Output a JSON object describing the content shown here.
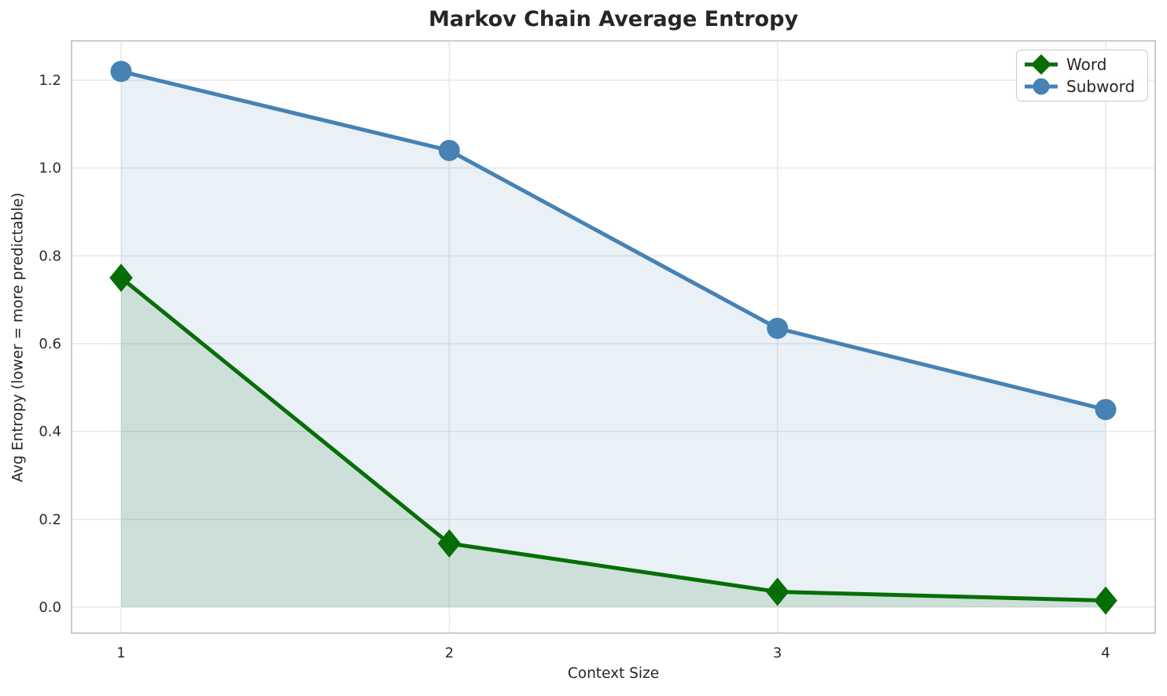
{
  "chart_data": {
    "type": "line",
    "title": "Markov Chain Average Entropy",
    "xlabel": "Context Size",
    "ylabel": "Avg Entropy (lower = more predictable)",
    "x": [
      1,
      2,
      3,
      4
    ],
    "x_tick_labels": [
      "1",
      "2",
      "3",
      "4"
    ],
    "y_ticks": [
      0.0,
      0.2,
      0.4,
      0.6,
      0.8,
      1.0,
      1.2
    ],
    "y_tick_labels": [
      "0.0",
      "0.2",
      "0.4",
      "0.6",
      "0.8",
      "1.0",
      "1.2"
    ],
    "xlim": [
      0.85,
      4.15
    ],
    "ylim": [
      -0.06,
      1.29
    ],
    "grid": true,
    "legend_position": "upper right",
    "series": [
      {
        "name": "Word",
        "marker": "diamond",
        "color": "#066e06",
        "fill_alpha": 0.12,
        "values": [
          0.75,
          0.145,
          0.035,
          0.015
        ]
      },
      {
        "name": "Subword",
        "marker": "circle",
        "color": "#4682b4",
        "fill_alpha": 0.12,
        "values": [
          1.22,
          1.04,
          0.635,
          0.45
        ]
      }
    ],
    "colors": {
      "grid": "#e7e7e7",
      "spine": "#cccccc",
      "text": "#262626"
    }
  }
}
